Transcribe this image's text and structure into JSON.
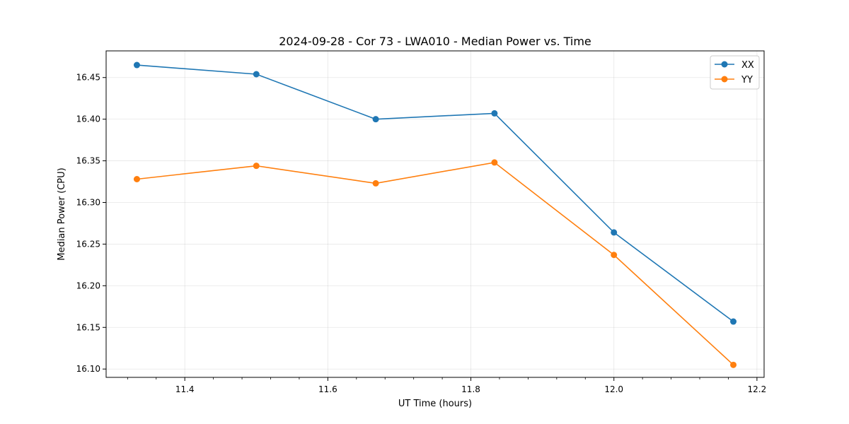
{
  "chart_data": {
    "type": "line",
    "title": "2024-09-28 - Cor 73 - LWA010 - Median Power vs. Time",
    "xlabel": "UT Time (hours)",
    "ylabel": "Median Power (CPU)",
    "xlim": [
      11.29,
      12.21
    ],
    "ylim": [
      16.09,
      16.482
    ],
    "x_ticks": [
      "11.4",
      "11.6",
      "11.8",
      "12.0",
      "12.2"
    ],
    "y_ticks": [
      "16.10",
      "16.15",
      "16.20",
      "16.25",
      "16.30",
      "16.35",
      "16.40",
      "16.45"
    ],
    "grid": true,
    "legend_position": "top-right",
    "x": [
      11.333,
      11.5,
      11.667,
      11.833,
      12.0,
      12.167
    ],
    "series": [
      {
        "name": "XX",
        "color": "#1f77b4",
        "values": [
          16.465,
          16.454,
          16.4,
          16.407,
          16.264,
          16.157
        ]
      },
      {
        "name": "YY",
        "color": "#ff7f0e",
        "values": [
          16.328,
          16.344,
          16.323,
          16.348,
          16.237,
          16.105
        ]
      }
    ]
  }
}
